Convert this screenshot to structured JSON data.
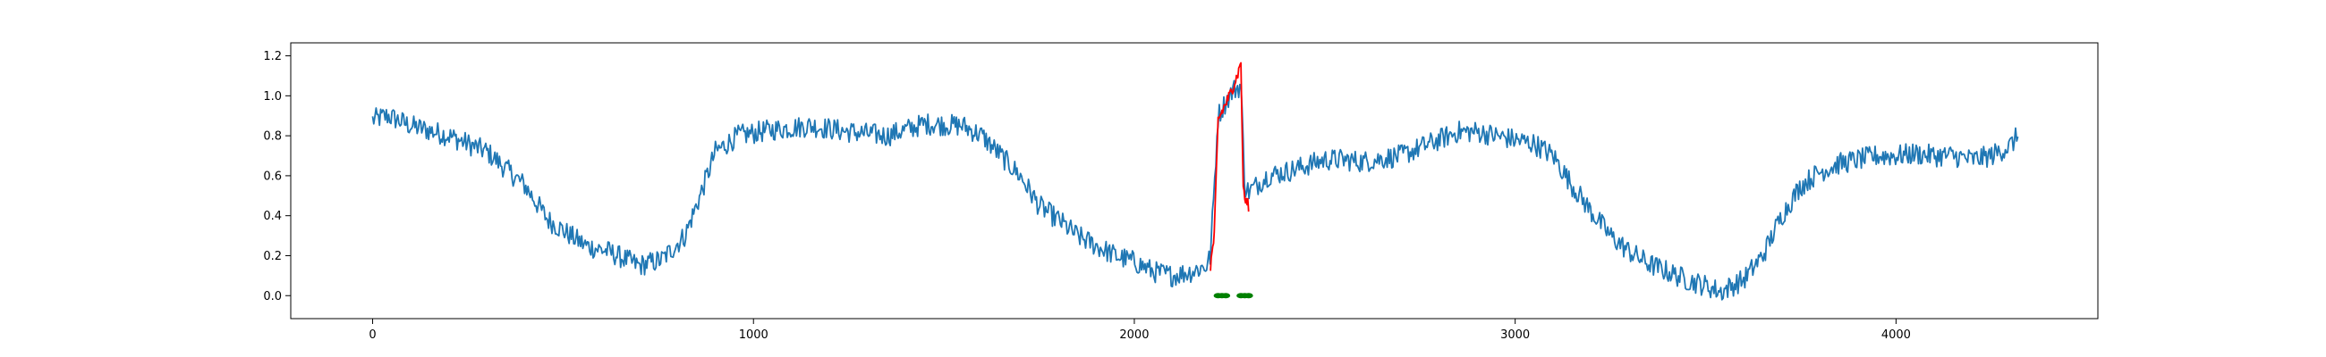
{
  "chart_data": {
    "type": "line",
    "title": "",
    "xlabel": "",
    "ylabel": "",
    "xlim": [
      -215,
      4530
    ],
    "ylim": [
      -0.115,
      1.265
    ],
    "x_ticks": [
      0,
      1000,
      2000,
      3000,
      4000
    ],
    "x_tick_labels": [
      "0",
      "1000",
      "2000",
      "3000",
      "4000"
    ],
    "y_ticks": [
      0.0,
      0.2,
      0.4,
      0.6,
      0.8,
      1.0,
      1.2
    ],
    "y_tick_labels": [
      "0.0",
      "0.2",
      "0.4",
      "0.6",
      "0.8",
      "1.0",
      "1.2"
    ],
    "grid": false,
    "legend": "none",
    "n_points": 4320,
    "series": [
      {
        "role": "signal",
        "color": "#1f77b4",
        "x": [
          0,
          40,
          100,
          200,
          300,
          400,
          460,
          520,
          560,
          620,
          700,
          760,
          820,
          860,
          900,
          960,
          1050,
          1150,
          1250,
          1350,
          1450,
          1550,
          1600,
          1650,
          1700,
          1750,
          1800,
          1850,
          1900,
          1950,
          2000,
          2050,
          2100,
          2150,
          2190,
          2200,
          2220,
          2240,
          2260,
          2280,
          2290,
          2300,
          2320,
          2350,
          2400,
          2450,
          2500,
          2550,
          2600,
          2700,
          2800,
          2850,
          2900,
          2950,
          3000,
          3050,
          3100,
          3150,
          3200,
          3250,
          3300,
          3350,
          3400,
          3450,
          3500,
          3540,
          3600,
          3650,
          3700,
          3750,
          3800,
          3850,
          3900,
          3950,
          4000,
          4050,
          4100,
          4150,
          4200,
          4250,
          4300,
          4320
        ],
        "y": [
          0.88,
          0.9,
          0.85,
          0.8,
          0.72,
          0.55,
          0.38,
          0.3,
          0.25,
          0.22,
          0.15,
          0.18,
          0.3,
          0.5,
          0.72,
          0.8,
          0.83,
          0.85,
          0.82,
          0.8,
          0.86,
          0.85,
          0.8,
          0.7,
          0.6,
          0.45,
          0.38,
          0.3,
          0.25,
          0.2,
          0.17,
          0.12,
          0.1,
          0.12,
          0.15,
          0.2,
          0.9,
          0.97,
          1.03,
          1.05,
          0.55,
          0.52,
          0.55,
          0.6,
          0.62,
          0.65,
          0.68,
          0.68,
          0.67,
          0.7,
          0.78,
          0.82,
          0.82,
          0.8,
          0.78,
          0.76,
          0.7,
          0.55,
          0.42,
          0.3,
          0.22,
          0.16,
          0.12,
          0.08,
          0.05,
          0.02,
          0.08,
          0.2,
          0.4,
          0.55,
          0.62,
          0.66,
          0.68,
          0.7,
          0.7,
          0.71,
          0.7,
          0.7,
          0.68,
          0.7,
          0.75,
          0.8
        ]
      },
      {
        "role": "anomaly",
        "color": "#ff0000",
        "x": [
          2200,
          2210,
          2220,
          2230,
          2240,
          2250,
          2260,
          2270,
          2275,
          2280,
          2285,
          2290,
          2300
        ],
        "y": [
          0.15,
          0.3,
          0.88,
          0.92,
          0.96,
          1.0,
          1.05,
          1.1,
          1.13,
          1.18,
          0.58,
          0.48,
          0.45
        ]
      }
    ],
    "markers": {
      "type": "scatter",
      "color": "#008000",
      "x": [
        2220,
        2230,
        2240,
        2280,
        2290,
        2300
      ],
      "y": [
        0,
        0,
        0,
        0,
        0,
        0
      ]
    }
  }
}
